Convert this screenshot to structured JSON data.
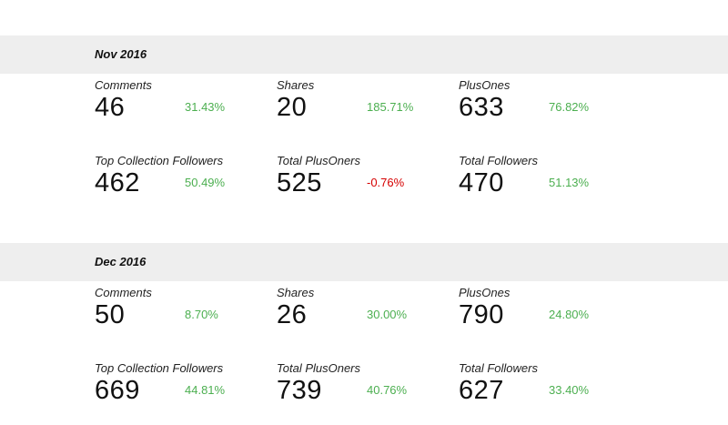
{
  "colors": {
    "positive": "#4caf50",
    "negative": "#d50000",
    "section_header_bg": "#eeeeee"
  },
  "sections": [
    {
      "title": "Nov 2016",
      "metrics": [
        {
          "label": "Comments",
          "value": "46",
          "change": "31.43%",
          "trend": "positive"
        },
        {
          "label": "Shares",
          "value": "20",
          "change": "185.71%",
          "trend": "positive"
        },
        {
          "label": "PlusOnes",
          "value": "633",
          "change": "76.82%",
          "trend": "positive"
        },
        {
          "label": "Top Collection Followers",
          "value": "462",
          "change": "50.49%",
          "trend": "positive"
        },
        {
          "label": "Total PlusOners",
          "value": "525",
          "change": "-0.76%",
          "trend": "negative"
        },
        {
          "label": "Total Followers",
          "value": "470",
          "change": "51.13%",
          "trend": "positive"
        }
      ]
    },
    {
      "title": "Dec 2016",
      "metrics": [
        {
          "label": "Comments",
          "value": "50",
          "change": "8.70%",
          "trend": "positive"
        },
        {
          "label": "Shares",
          "value": "26",
          "change": "30.00%",
          "trend": "positive"
        },
        {
          "label": "PlusOnes",
          "value": "790",
          "change": "24.80%",
          "trend": "positive"
        },
        {
          "label": "Top Collection Followers",
          "value": "669",
          "change": "44.81%",
          "trend": "positive"
        },
        {
          "label": "Total PlusOners",
          "value": "739",
          "change": "40.76%",
          "trend": "positive"
        },
        {
          "label": "Total Followers",
          "value": "627",
          "change": "33.40%",
          "trend": "positive"
        }
      ]
    }
  ]
}
